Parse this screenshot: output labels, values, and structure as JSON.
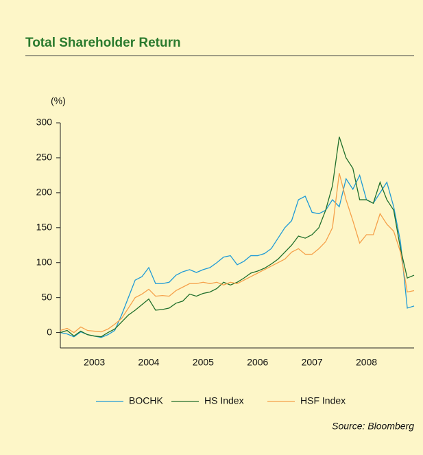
{
  "chart_data": {
    "type": "line",
    "title": "Total Shareholder Return",
    "ylabel": "(%)",
    "source": "Source: Bloomberg",
    "x": [
      2002.875,
      2003,
      2003.125,
      2003.25,
      2003.375,
      2003.5,
      2003.625,
      2003.75,
      2003.875,
      2004,
      2004.125,
      2004.25,
      2004.375,
      2004.5,
      2004.625,
      2004.75,
      2004.875,
      2005,
      2005.125,
      2005.25,
      2005.375,
      2005.5,
      2005.625,
      2005.75,
      2005.875,
      2006,
      2006.125,
      2006.25,
      2006.375,
      2006.5,
      2006.625,
      2006.75,
      2006.875,
      2007,
      2007.125,
      2007.25,
      2007.375,
      2007.5,
      2007.625,
      2007.75,
      2007.875,
      2008,
      2008.125,
      2008.25,
      2008.375,
      2008.5,
      2008.625,
      2008.75,
      2008.875,
      2009,
      2009.125,
      2009.25,
      2009.375
    ],
    "series": [
      {
        "name": "BOCHK",
        "color": "#1e9ad6",
        "values": [
          0,
          -2,
          -6,
          1,
          -3,
          -5,
          -7,
          -3,
          3,
          25,
          50,
          75,
          80,
          93,
          70,
          70,
          72,
          82,
          87,
          90,
          86,
          90,
          93,
          100,
          108,
          110,
          97,
          102,
          110,
          110,
          113,
          120,
          135,
          150,
          160,
          190,
          195,
          172,
          170,
          175,
          190,
          180,
          220,
          205,
          225,
          190,
          185,
          200,
          215,
          180,
          130,
          35,
          38
        ]
      },
      {
        "name": "HS Index",
        "color": "#1f6e2a",
        "values": [
          0,
          3,
          -5,
          2,
          -3,
          -5,
          -6,
          0,
          5,
          15,
          25,
          32,
          40,
          48,
          32,
          33,
          35,
          42,
          45,
          55,
          52,
          56,
          58,
          63,
          72,
          68,
          72,
          78,
          85,
          88,
          92,
          98,
          105,
          115,
          125,
          138,
          135,
          140,
          150,
          175,
          210,
          280,
          250,
          235,
          190,
          190,
          185,
          215,
          190,
          175,
          120,
          78,
          82
        ]
      },
      {
        "name": "HSF Index",
        "color": "#f5a04a",
        "values": [
          3,
          6,
          0,
          8,
          3,
          2,
          1,
          5,
          12,
          20,
          35,
          50,
          55,
          62,
          52,
          53,
          52,
          60,
          65,
          70,
          70,
          72,
          70,
          72,
          68,
          72,
          70,
          75,
          80,
          85,
          90,
          95,
          100,
          105,
          115,
          120,
          112,
          112,
          120,
          130,
          150,
          228,
          190,
          160,
          128,
          140,
          140,
          170,
          155,
          145,
          115,
          58,
          60
        ]
      }
    ],
    "xlim": [
      2002.875,
      2009.375
    ],
    "xticks": [
      {
        "value": 2003.5,
        "label": "2003"
      },
      {
        "value": 2004.5,
        "label": "2004"
      },
      {
        "value": 2005.5,
        "label": "2005"
      },
      {
        "value": 2006.5,
        "label": "2006"
      },
      {
        "value": 2007.5,
        "label": "2007"
      },
      {
        "value": 2008.5,
        "label": "2008"
      }
    ],
    "ylim": [
      -22,
      300
    ],
    "yticks": [
      0,
      50,
      100,
      150,
      200,
      250,
      300
    ]
  }
}
